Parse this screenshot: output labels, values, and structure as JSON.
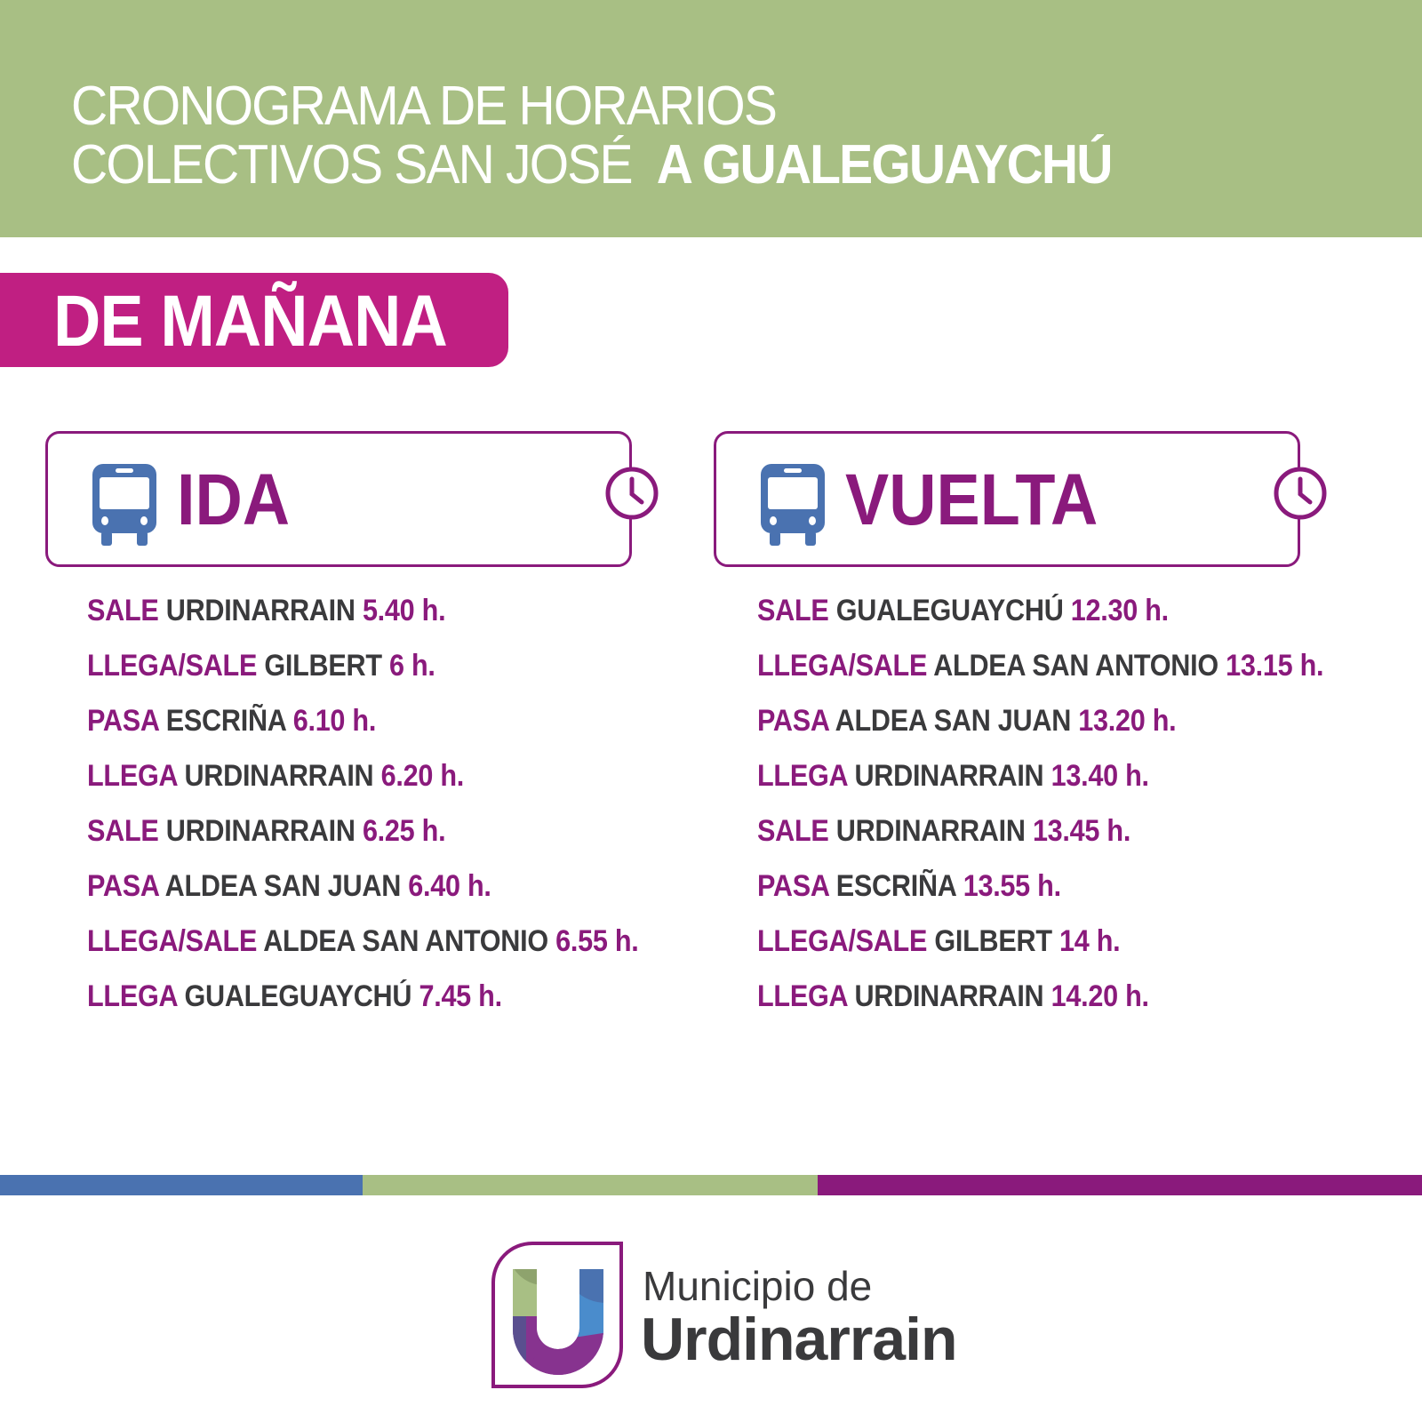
{
  "header": {
    "line1": "CRONOGRAMA DE HORARIOS",
    "line2_light": "COLECTIVOS SAN JOSÉ",
    "line2_bold": "A GUALEGUAYCHÚ"
  },
  "section": "DE MAÑANA",
  "ida": {
    "title": "IDA",
    "rows": [
      {
        "action": "SALE",
        "place": "URDINARRAIN",
        "time": "5.40 h."
      },
      {
        "action": "LLEGA/SALE",
        "place": "GILBERT",
        "time": "6 h."
      },
      {
        "action": "PASA",
        "place": "ESCRIÑA",
        "time": "6.10 h."
      },
      {
        "action": "LLEGA",
        "place": "URDINARRAIN",
        "time": "6.20 h."
      },
      {
        "action": "SALE",
        "place": "URDINARRAIN",
        "time": "6.25 h."
      },
      {
        "action": "PASA",
        "place": "ALDEA SAN JUAN",
        "time": "6.40 h."
      },
      {
        "action": "LLEGA/SALE",
        "place": "ALDEA SAN ANTONIO",
        "time": "6.55 h."
      },
      {
        "action": "LLEGA",
        "place": "GUALEGUAYCHÚ",
        "time": "7.45 h."
      }
    ]
  },
  "vuelta": {
    "title": "VUELTA",
    "rows": [
      {
        "action": "SALE",
        "place": "GUALEGUAYCHÚ",
        "time": "12.30 h."
      },
      {
        "action": "LLEGA/SALE",
        "place": "ALDEA SAN ANTONIO",
        "time": "13.15 h."
      },
      {
        "action": "PASA",
        "place": "ALDEA SAN JUAN",
        "time": "13.20 h."
      },
      {
        "action": "LLEGA",
        "place": "URDINARRAIN",
        "time": "13.40 h."
      },
      {
        "action": "SALE",
        "place": "URDINARRAIN",
        "time": "13.45 h."
      },
      {
        "action": "PASA",
        "place": "ESCRIÑA",
        "time": "13.55 h."
      },
      {
        "action": "LLEGA/SALE",
        "place": "GILBERT",
        "time": "14 h."
      },
      {
        "action": "LLEGA",
        "place": "URDINARRAIN",
        "time": "14.20 h."
      }
    ]
  },
  "logo": {
    "line1": "Municipio de",
    "line2": "Urdinarrain"
  },
  "colors": {
    "green": "#a8bf84",
    "magenta": "#c01f82",
    "purple": "#8a1a7c",
    "blue": "#4a72b0",
    "dark": "#3a3a3c"
  },
  "icons": {
    "bus": "bus-icon",
    "clock": "clock-icon"
  }
}
